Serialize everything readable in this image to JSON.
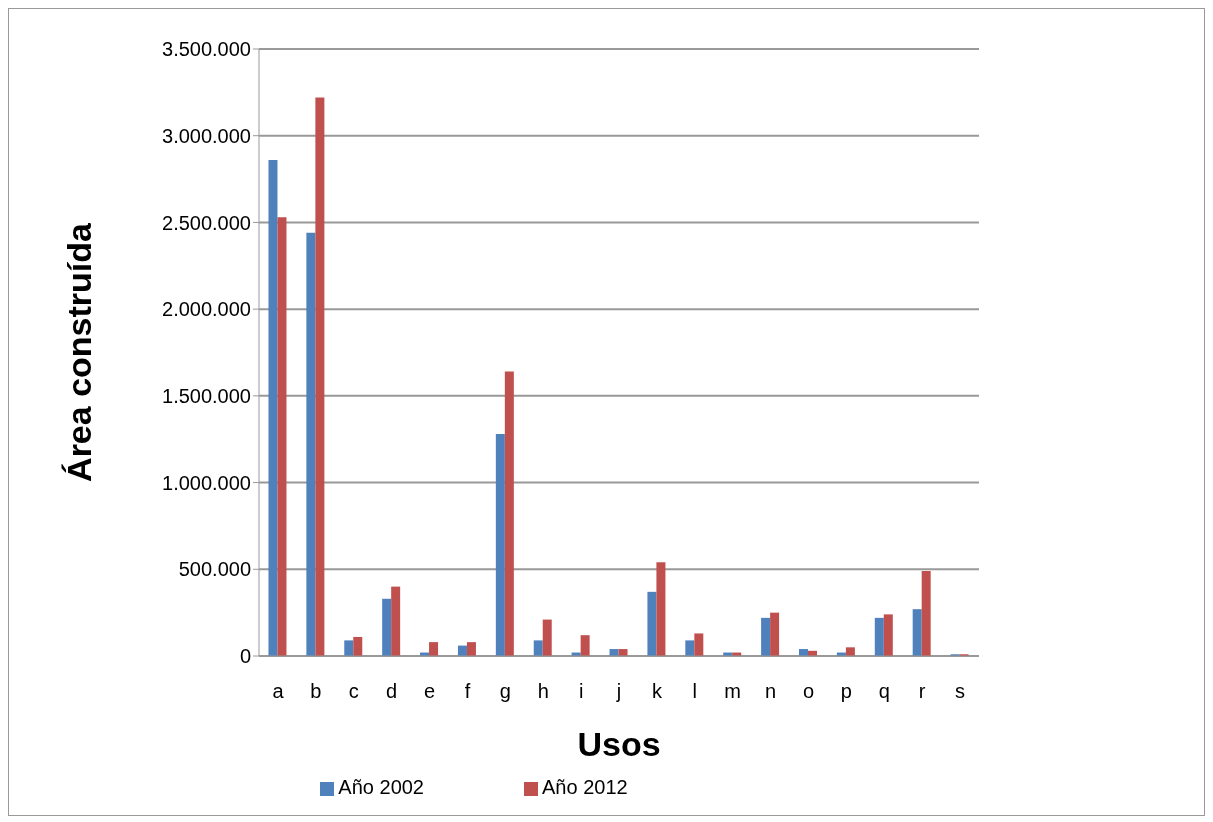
{
  "chart_data": {
    "type": "bar",
    "xlabel": "Usos",
    "ylabel": "Área construída",
    "categories": [
      "a",
      "b",
      "c",
      "d",
      "e",
      "f",
      "g",
      "h",
      "i",
      "j",
      "k",
      "l",
      "m",
      "n",
      "o",
      "p",
      "q",
      "r",
      "s"
    ],
    "series": [
      {
        "name": "Año 2002",
        "color": "#4f81bd",
        "values": [
          2860000,
          2440000,
          90000,
          330000,
          20000,
          60000,
          1280000,
          90000,
          20000,
          40000,
          370000,
          90000,
          20000,
          220000,
          40000,
          20000,
          220000,
          270000,
          10000
        ]
      },
      {
        "name": "Año 2012",
        "color": "#c0504d",
        "values": [
          2530000,
          3220000,
          110000,
          400000,
          80000,
          80000,
          1640000,
          210000,
          120000,
          40000,
          540000,
          130000,
          20000,
          250000,
          30000,
          50000,
          240000,
          490000,
          10000
        ]
      }
    ],
    "ylim": [
      0,
      3500000
    ],
    "yticks": [
      {
        "value": 0,
        "label": "0"
      },
      {
        "value": 500000,
        "label": "500.000"
      },
      {
        "value": 1000000,
        "label": "1.000.000"
      },
      {
        "value": 1500000,
        "label": "1.500.000"
      },
      {
        "value": 2000000,
        "label": "2.000.000"
      },
      {
        "value": 2500000,
        "label": "2.500.000"
      },
      {
        "value": 3000000,
        "label": "3.000.000"
      },
      {
        "value": 3500000,
        "label": "3.500.000"
      }
    ],
    "grid": "y",
    "legend": "bottom"
  }
}
